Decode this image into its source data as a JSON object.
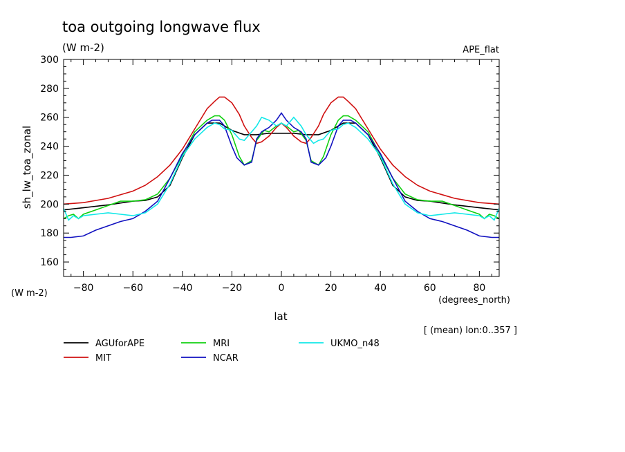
{
  "chart_data": {
    "type": "line",
    "title": "toa outgoing longwave flux",
    "subtitle": "(W m-2)",
    "dataset_label": "APE_flat",
    "ylabel": "sh_lw_toa_zonal",
    "yunits": "(W m-2)",
    "xlabel": "lat",
    "xunits": "(degrees_north)",
    "note": "[ (mean) lon:0..357 ]",
    "xlim": [
      -88,
      88
    ],
    "ylim": [
      150,
      300
    ],
    "xticks": [
      -80,
      -60,
      -40,
      -20,
      0,
      20,
      40,
      60,
      80
    ],
    "yticks": [
      160,
      180,
      200,
      220,
      240,
      260,
      280,
      300
    ],
    "grid": false,
    "legend_position": "bottom",
    "series": [
      {
        "name": "AGUforAPE",
        "color": "#000000",
        "x": [
          -88,
          -80,
          -70,
          -60,
          -55,
          -50,
          -45,
          -40,
          -35,
          -30,
          -25,
          -20,
          -15,
          -10,
          -5,
          0,
          5,
          10,
          15,
          20,
          25,
          30,
          35,
          40,
          45,
          50,
          55,
          60,
          70,
          80,
          88
        ],
        "y": [
          196,
          197.5,
          199.5,
          202,
          202.5,
          205,
          213,
          232,
          248,
          256,
          256,
          251,
          248,
          248,
          249,
          249,
          249,
          248,
          248,
          251,
          256,
          256,
          248,
          232,
          213,
          205,
          202.5,
          202,
          199.5,
          197.5,
          196
        ]
      },
      {
        "name": "MIT",
        "color": "#d01010",
        "x": [
          -88,
          -80,
          -70,
          -60,
          -55,
          -50,
          -45,
          -40,
          -35,
          -30,
          -27,
          -25,
          -23,
          -20,
          -17,
          -15,
          -12,
          -10,
          -8,
          -5,
          -2,
          0,
          2,
          5,
          8,
          10,
          12,
          15,
          17,
          20,
          23,
          25,
          27,
          30,
          35,
          40,
          45,
          50,
          55,
          60,
          70,
          80,
          88
        ],
        "y": [
          200,
          201,
          204,
          209,
          213,
          219,
          227,
          238,
          252,
          266,
          271,
          274,
          274,
          270,
          262,
          254,
          246,
          242,
          243,
          247,
          253,
          256,
          253,
          247,
          243,
          242,
          246,
          254,
          262,
          270,
          274,
          274,
          271,
          266,
          252,
          238,
          227,
          219,
          213,
          209,
          204,
          201,
          200
        ]
      },
      {
        "name": "MRI",
        "color": "#10d010",
        "x": [
          -88,
          -86,
          -84,
          -82,
          -80,
          -75,
          -70,
          -65,
          -60,
          -55,
          -50,
          -45,
          -40,
          -35,
          -30,
          -27,
          -25,
          -23,
          -20,
          -17,
          -15,
          -12,
          -10,
          -7,
          -5,
          -2,
          0,
          2,
          5,
          7,
          10,
          12,
          15,
          17,
          20,
          23,
          25,
          27,
          30,
          35,
          40,
          45,
          50,
          55,
          60,
          65,
          70,
          75,
          80,
          82,
          84,
          86,
          88
        ],
        "y": [
          190,
          192,
          193,
          190,
          193,
          196,
          199,
          202,
          202,
          203,
          207,
          218,
          234,
          250,
          258,
          261,
          261,
          258,
          248,
          233,
          227,
          230,
          244,
          251,
          250,
          254,
          256,
          254,
          250,
          251,
          244,
          230,
          227,
          233,
          248,
          258,
          261,
          261,
          258,
          250,
          234,
          218,
          207,
          203,
          202,
          202,
          199,
          196,
          193,
          190,
          193,
          192,
          190
        ]
      },
      {
        "name": "NCAR",
        "color": "#1010c0",
        "x": [
          -88,
          -85,
          -80,
          -75,
          -70,
          -65,
          -60,
          -55,
          -50,
          -45,
          -40,
          -35,
          -30,
          -28,
          -25,
          -23,
          -20,
          -18,
          -15,
          -12,
          -10,
          -8,
          -5,
          -2,
          0,
          2,
          5,
          8,
          10,
          12,
          15,
          18,
          20,
          23,
          25,
          28,
          30,
          35,
          40,
          45,
          50,
          55,
          60,
          65,
          70,
          75,
          80,
          85,
          88
        ],
        "y": [
          177,
          177,
          178,
          182,
          185,
          188,
          190,
          195,
          202,
          218,
          235,
          248,
          256,
          258,
          258,
          254,
          240,
          232,
          227,
          229,
          245,
          250,
          253,
          258,
          263,
          258,
          253,
          250,
          245,
          229,
          227,
          232,
          240,
          254,
          258,
          258,
          256,
          248,
          235,
          218,
          202,
          195,
          190,
          188,
          185,
          182,
          178,
          177,
          177
        ]
      },
      {
        "name": "UKMO_n48",
        "color": "#10e8e8",
        "x": [
          -88,
          -86,
          -84,
          -82,
          -80,
          -75,
          -70,
          -65,
          -60,
          -55,
          -50,
          -45,
          -40,
          -35,
          -30,
          -27,
          -25,
          -23,
          -20,
          -17,
          -15,
          -13,
          -10,
          -8,
          -5,
          -2,
          0,
          2,
          5,
          8,
          10,
          13,
          15,
          17,
          20,
          23,
          25,
          27,
          30,
          35,
          40,
          45,
          50,
          55,
          60,
          65,
          70,
          75,
          80,
          82,
          84,
          86,
          88
        ],
        "y": [
          197,
          189,
          192,
          190,
          192,
          193,
          194,
          193,
          192,
          194,
          200,
          214,
          233,
          245,
          253,
          256,
          255,
          252,
          251,
          245,
          244,
          248,
          254,
          260,
          258,
          254,
          256,
          254,
          260,
          254,
          248,
          242,
          244,
          245,
          251,
          252,
          255,
          256,
          253,
          245,
          233,
          214,
          200,
          194,
          192,
          193,
          194,
          193,
          192,
          190,
          192,
          189,
          197
        ]
      }
    ]
  }
}
